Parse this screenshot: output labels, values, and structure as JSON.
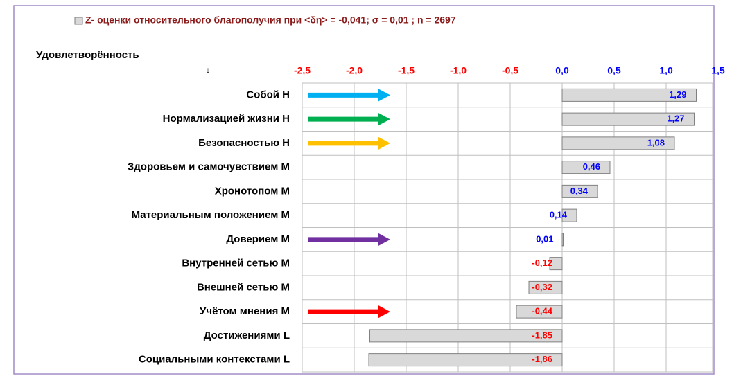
{
  "chart_data": {
    "type": "bar",
    "orientation": "horizontal",
    "title": "Z- оценки относительного благополучия при <δη> = -0,041; σ = 0,01 ; n = 2697",
    "y_label": "Удовлетворённость",
    "y_label_marker": "↓",
    "categories": [
      "Собой Н",
      "Нормализацией жизни Н",
      "Безопасностью Н",
      "Здоровьем и самочувствием М",
      "Хронотопом М",
      "Материальным положением М",
      "Доверием М",
      "Внутренней сетью М",
      "Внешней сетью М",
      "Учётом мнения М",
      "Достижениями L",
      "Социальными контекстами L"
    ],
    "values": [
      1.29,
      1.27,
      1.08,
      0.46,
      0.34,
      0.14,
      0.01,
      -0.12,
      -0.32,
      -0.44,
      -1.85,
      -1.86
    ],
    "value_labels": [
      "1,29",
      "1,27",
      "1,08",
      "0,46",
      "0,34",
      "0,14",
      "0,01",
      "-0,12",
      "-0,32",
      "-0,44",
      "-1,85",
      "-1,86"
    ],
    "color": "#d9d9d9",
    "positive_label_color": "#0000ff",
    "negative_label_color": "#ff0000",
    "arrow_colors": [
      "#00b0f0",
      "#00b050",
      "#ffc000",
      null,
      null,
      null,
      "#7030a0",
      null,
      null,
      "#ff0000",
      null,
      null
    ],
    "xlim": [
      -2.5,
      1.5
    ],
    "xticks": [
      {
        "value": -2.5,
        "label": "-2,5"
      },
      {
        "value": -2,
        "label": "-2,0"
      },
      {
        "value": -1.5,
        "label": "-1,5"
      },
      {
        "value": -1,
        "label": "-1,0"
      },
      {
        "value": -0.5,
        "label": "-0,5"
      },
      {
        "value": 0,
        "label": "0,0"
      },
      {
        "value": 0.5,
        "label": "0,5"
      },
      {
        "value": 1,
        "label": "1,0"
      },
      {
        "value": 1.5,
        "label": "1,5"
      }
    ],
    "grid": true
  }
}
